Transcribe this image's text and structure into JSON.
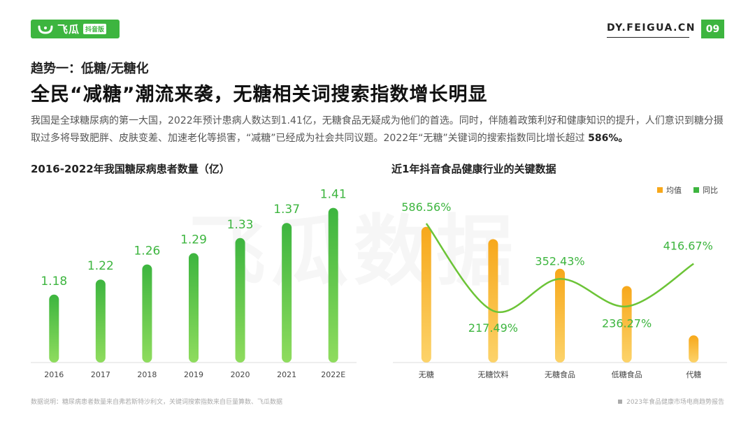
{
  "brand": {
    "name": "飞瓜",
    "sub": "抖音版",
    "site": "DY.FEIGUA.CN",
    "page": "09",
    "watermark": "飞瓜数据"
  },
  "section": {
    "trend": "趋势一：低糖/无糖化",
    "headline": "全民“减糖”潮流来袭，无糖相关词搜索指数增长明显"
  },
  "paragraph": {
    "text": "我国是全球糖尿病的第一大国，2022年预计患病人数达到1.41亿，无糖食品无疑成为他们的首选。同时，伴随着政策利好和健康知识的提升，人们意识到糖分摄取过多将导致肥胖、皮肤变差、加速老化等损害，“减糖”已经成为社会共同议题。2022年“无糖”关键词的搜索指数同比增长超过 ",
    "highlight": "586%。"
  },
  "footer": {
    "source": "数据说明：糖尿病患者数量来自弗若斯特沙利文，关键词搜索指数来自巨量算数、飞瓜数据",
    "report": "2023年食品健康市场电商趋势报告"
  },
  "colors": {
    "green": "#3db53f",
    "green_light": "#86d65a",
    "orange": "#f7a81b",
    "orange_light": "#fcd36a",
    "label_green": "#3db53f"
  },
  "chart_data": [
    {
      "type": "bar",
      "title": "2016-2022年我国糖尿病患者数量（亿）",
      "categories": [
        "2016",
        "2017",
        "2018",
        "2019",
        "2020",
        "2021",
        "2022E"
      ],
      "values": [
        1.18,
        1.22,
        1.26,
        1.29,
        1.33,
        1.37,
        1.41
      ],
      "value_labels": [
        "1.18",
        "1.22",
        "1.26",
        "1.29",
        "1.33",
        "1.37",
        "1.41"
      ],
      "ylim": [
        1.0,
        1.45
      ],
      "grid": false
    },
    {
      "type": "bar+line",
      "title": "近1年抖音食品健康行业的关键数据",
      "categories": [
        "无糖",
        "无糖饮料",
        "无糖食品",
        "低糖食品",
        "代糖"
      ],
      "series": [
        {
          "name": "均值",
          "type": "bar",
          "values": [
            5.5,
            5.0,
            3.8,
            3.1,
            1.1
          ]
        },
        {
          "name": "同比",
          "type": "line",
          "values": [
            586.56,
            217.49,
            352.43,
            236.27,
            416.67
          ],
          "labels": [
            "586.56%",
            "217.49%",
            "352.43%",
            "236.27%",
            "416.67%"
          ]
        }
      ],
      "legend": "top-right",
      "grid": false
    }
  ]
}
